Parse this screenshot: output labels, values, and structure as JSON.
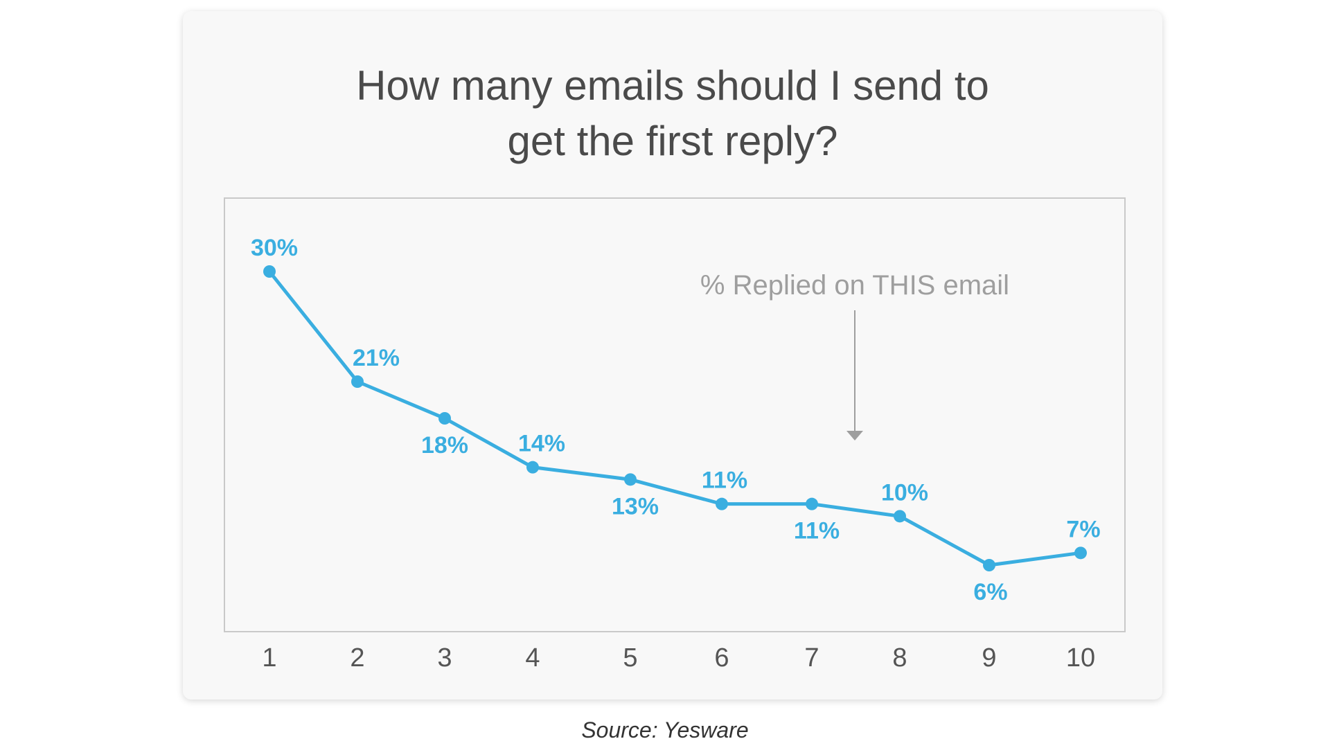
{
  "source_caption": "Source: Yesware",
  "colors": {
    "series": "#3aaee0",
    "annotation": "#9e9e9e",
    "plot_border": "#c9c9c9",
    "tick_text": "#555555",
    "title_text": "#4a4a4a"
  },
  "chart_data": {
    "type": "line",
    "title": [
      "How many emails should I send to",
      "get the first reply?"
    ],
    "xlabel": "",
    "ylabel": "",
    "categories": [
      "1",
      "2",
      "3",
      "4",
      "5",
      "6",
      "7",
      "8",
      "9",
      "10"
    ],
    "series": [
      {
        "values": [
          30,
          21,
          18,
          14,
          13,
          11,
          11,
          10,
          6,
          7
        ],
        "data_labels": [
          "30%",
          "21%",
          "18%",
          "14%",
          "13%",
          "11%",
          "11%",
          "10%",
          "6%",
          "7%"
        ]
      }
    ],
    "ylim": [
      0,
      35
    ],
    "grid": false,
    "y_axis_visible": false,
    "annotation": {
      "text": "% Replied on THIS email",
      "points_to_category": "7"
    }
  }
}
